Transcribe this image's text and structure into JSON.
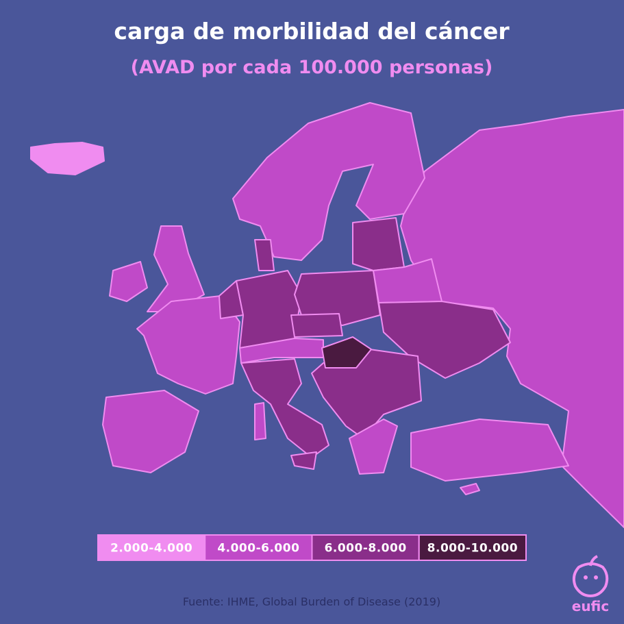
{
  "header": {
    "title": "carga de morbilidad del cáncer",
    "subtitle": "(AVAD por cada 100.000 personas)"
  },
  "legend": {
    "items": [
      {
        "label": "2.000-4.000",
        "color": "#f08cf0"
      },
      {
        "label": "4.000-6.000",
        "color": "#c04ac8"
      },
      {
        "label": "6.000-8.000",
        "color": "#8a2e8a"
      },
      {
        "label": "8.000-10.000",
        "color": "#4a1a40"
      }
    ]
  },
  "source": "Fuente: IHME, Global Burden of Disease (2019)",
  "logo": "eufic"
}
